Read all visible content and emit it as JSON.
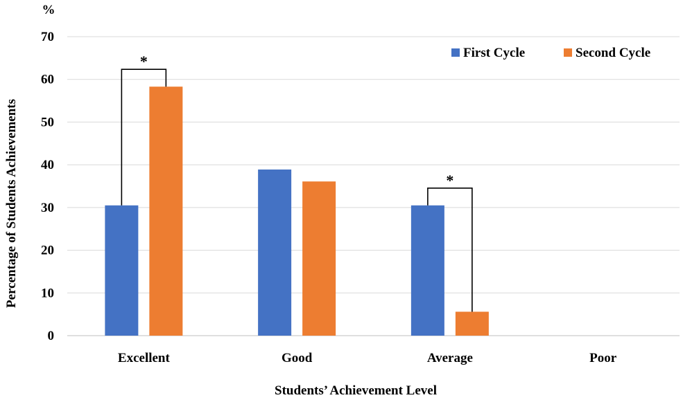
{
  "chart_data": {
    "type": "bar",
    "categories": [
      "Excellent",
      "Good",
      "Average",
      "Poor"
    ],
    "series": [
      {
        "name": "First Cycle",
        "values": [
          30.5,
          38.9,
          30.5,
          0
        ],
        "color": "#4472C4"
      },
      {
        "name": "Second Cycle",
        "values": [
          58.3,
          36.1,
          5.6,
          0
        ],
        "color": "#ED7D31"
      }
    ],
    "unit_label": "%",
    "xlabel": "Students’ Achievement Level",
    "ylabel": "Percentage of Students Achievements",
    "ylim": [
      0,
      70
    ],
    "yticks": [
      0,
      10,
      20,
      30,
      40,
      50,
      60,
      70
    ],
    "grid": true,
    "legend_position": "top-right",
    "significance_marks": [
      {
        "category": "Excellent",
        "label": "*"
      },
      {
        "category": "Average",
        "label": "*"
      }
    ]
  }
}
